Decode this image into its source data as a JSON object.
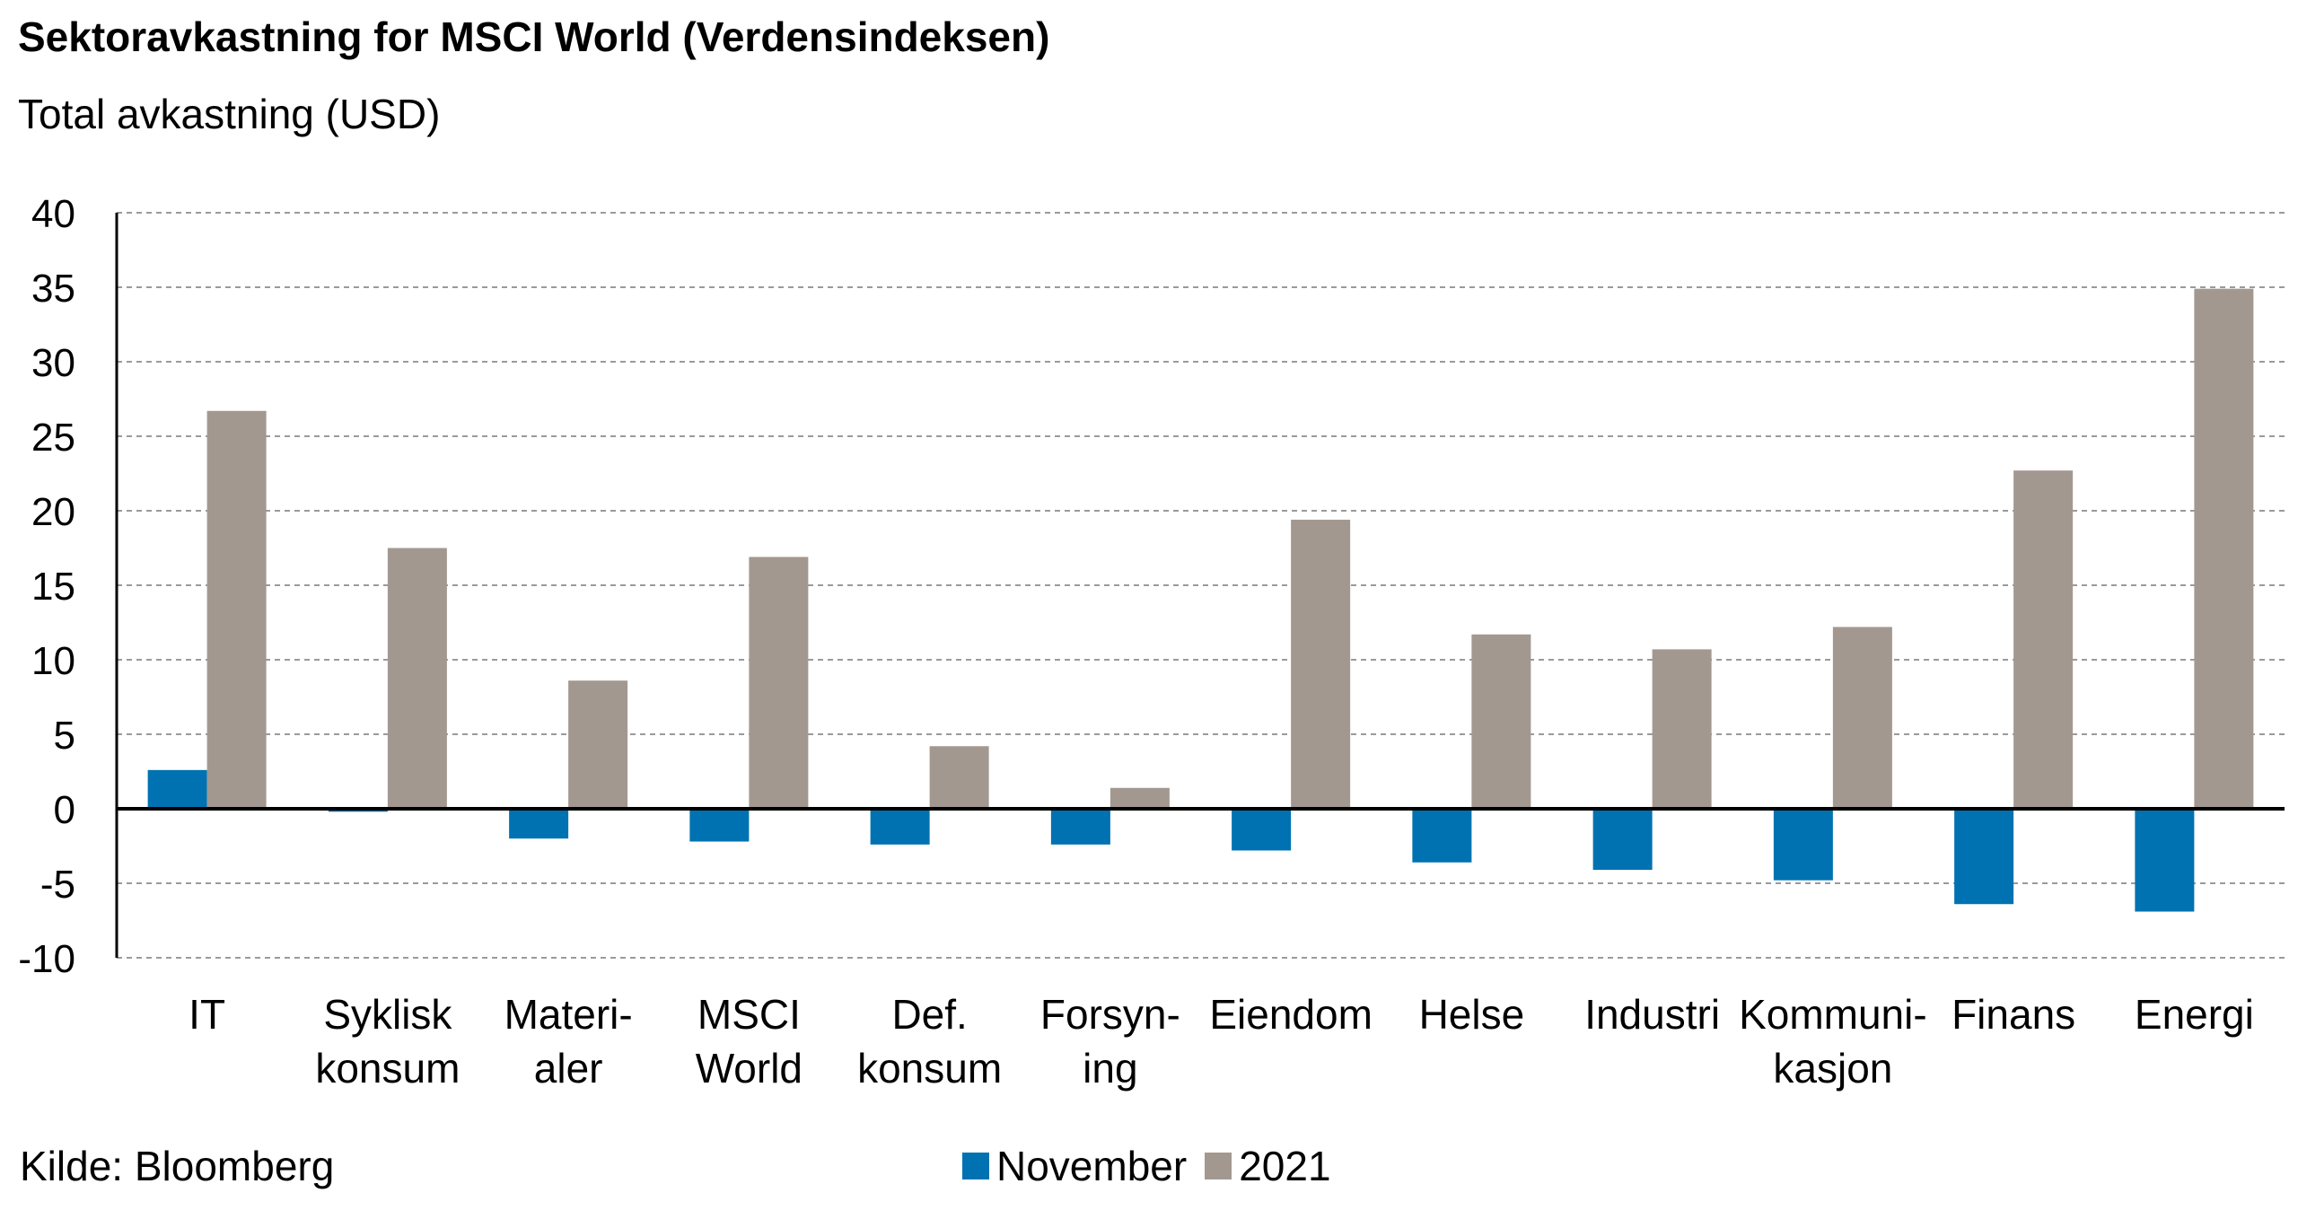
{
  "title": "Sektoravkastning for MSCI World (Verdensindeksen)",
  "subtitle": "Total avkastning (USD)",
  "source": "Kilde: Bloomberg",
  "chart_data": {
    "type": "bar",
    "categories": [
      [
        "IT"
      ],
      [
        "Syklisk",
        "konsum"
      ],
      [
        "Materi-",
        "aler"
      ],
      [
        "MSCI",
        "World"
      ],
      [
        "Def.",
        "konsum"
      ],
      [
        "Forsyn-",
        "ing"
      ],
      [
        "Eiendom"
      ],
      [
        "Helse"
      ],
      [
        "Industri"
      ],
      [
        "Kommuni-",
        "kasjon"
      ],
      [
        "Finans"
      ],
      [
        "Energi"
      ]
    ],
    "series": [
      {
        "name": "November",
        "color": "#0072b1",
        "values": [
          2.6,
          -0.2,
          -2.0,
          -2.2,
          -2.4,
          -2.4,
          -2.8,
          -3.6,
          -4.1,
          -4.8,
          -6.4,
          -6.9
        ]
      },
      {
        "name": "2021",
        "color": "#a39890",
        "values": [
          26.7,
          17.5,
          8.6,
          16.9,
          4.2,
          1.4,
          19.4,
          11.7,
          10.7,
          12.2,
          22.7,
          34.9
        ]
      }
    ],
    "ylim": [
      -10,
      40
    ],
    "yticks": [
      40,
      35,
      30,
      25,
      20,
      15,
      10,
      5,
      0,
      -5,
      -10
    ],
    "grid": true,
    "legend_position": "bottom-center"
  }
}
